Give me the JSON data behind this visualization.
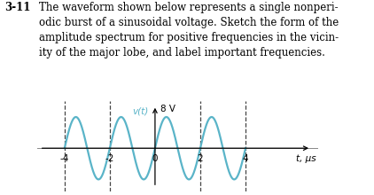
{
  "title_number": "3-11",
  "problem_text_lines": [
    "The waveform shown below represents a single nonperi-",
    "odic burst of a sinusoidal voltage. Sketch the form of the",
    "amplitude spectrum for positive frequencies in the vicin-",
    "ity of the major lobe, and label important frequencies."
  ],
  "waveform": {
    "amplitude": 8,
    "t_start": -4,
    "t_end": 4,
    "frequency": 0.5,
    "color": "#5ab4c8",
    "linewidth": 1.6
  },
  "dashed_lines": {
    "x_positions": [
      -4,
      -2,
      2,
      4
    ],
    "color": "#444444",
    "linestyle": "--",
    "linewidth": 0.9
  },
  "axis_labels": {
    "x_label": "t, μs",
    "y_label": "v(t)",
    "y_label_color": "#5ab4c8"
  },
  "x_ticks": [
    -4,
    -2,
    0,
    2,
    4
  ],
  "x_tick_labels": [
    "-4",
    "-2",
    "0",
    "2",
    "4"
  ],
  "annotation_8V": "8 V",
  "xlim": [
    -5.2,
    7.2
  ],
  "ylim": [
    -11,
    12
  ],
  "background_color": "#ffffff",
  "text_color": "#000000",
  "fontsize_problem": 8.5,
  "fontsize_axis": 7.5
}
